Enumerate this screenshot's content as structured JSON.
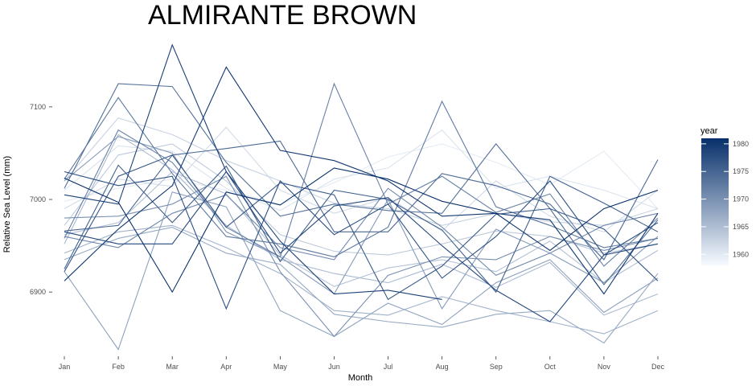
{
  "chart_data": {
    "type": "line",
    "title": "ALMIRANTE BROWN",
    "xlabel": "Month",
    "ylabel": "Relative Sea Level (mm)",
    "categories": [
      "Jan",
      "Feb",
      "Mar",
      "Apr",
      "May",
      "Jun",
      "Jul",
      "Aug",
      "Sep",
      "Oct",
      "Nov",
      "Dec"
    ],
    "ylim": [
      6835,
      7172
    ],
    "yticks": [
      6900,
      7000,
      7100
    ],
    "grid": false,
    "legend": {
      "title": "year",
      "position": "right",
      "range": [
        1958,
        1981
      ],
      "ticks": [
        1960,
        1965,
        1970,
        1975,
        1980
      ],
      "color_low": "#f7fbff",
      "color_high": "#08306b"
    },
    "series": [
      {
        "name": "1958",
        "values": [
          6998,
          7012,
          7022,
          7010,
          6995,
          7018,
          7046,
          7060,
          7040,
          7016,
          7052,
          6990
        ]
      },
      {
        "name": "1959",
        "values": [
          7010,
          7058,
          7052,
          7012,
          6988,
          7022,
          7034,
          7075,
          7012,
          7025,
          7010,
          6990
        ]
      },
      {
        "name": "1960",
        "values": [
          6990,
          7022,
          7014,
          7078,
          7010,
          6985,
          7002,
          6966,
          7020,
          6982,
          6965,
          7010
        ]
      },
      {
        "name": "1961",
        "values": [
          7020,
          7088,
          7070,
          7042,
          7020,
          6996,
          6990,
          6972,
          6985,
          6976,
          6972,
          6990
        ]
      },
      {
        "name": "1962",
        "values": [
          6972,
          7048,
          7060,
          7020,
          6962,
          6944,
          6940,
          6952,
          6966,
          6960,
          6942,
          6952
        ]
      },
      {
        "name": "1963",
        "values": [
          6962,
          6975,
          7030,
          7006,
          6940,
          6906,
          6926,
          6935,
          6922,
          6955,
          6910,
          6945
        ]
      },
      {
        "name": "1964",
        "values": [
          6952,
          7070,
          7032,
          6972,
          6935,
          6920,
          6910,
          6930,
          6905,
          6932,
          6875,
          6898
        ]
      },
      {
        "name": "1965",
        "values": [
          6942,
          6965,
          6972,
          6948,
          6920,
          6880,
          6875,
          6895,
          6880,
          6868,
          6855,
          6880
        ]
      },
      {
        "name": "1966",
        "values": [
          6935,
          6958,
          6970,
          6942,
          6930,
          6876,
          6868,
          6862,
          6876,
          6880,
          6845,
          6920
        ]
      },
      {
        "name": "1967",
        "values": [
          6922,
          6838,
          7008,
          6992,
          6880,
          6852,
          6888,
          6865,
          6910,
          6935,
          6878,
          6915
        ]
      },
      {
        "name": "1968",
        "values": [
          7020,
          7068,
          7050,
          6965,
          6938,
          6898,
          7000,
          6882,
          6968,
          6942,
          6910,
          6960
        ]
      },
      {
        "name": "1969",
        "values": [
          6980,
          6982,
          6995,
          7025,
          6922,
          6852,
          6918,
          6938,
          6935,
          6960,
          6945,
          6958
        ]
      },
      {
        "name": "1970",
        "values": [
          6960,
          6948,
          6985,
          7005,
          6948,
          6935,
          7012,
          6970,
          6918,
          6942,
          6972,
          6985
        ]
      },
      {
        "name": "1971",
        "values": [
          6958,
          7075,
          7040,
          6970,
          6938,
          7125,
          6995,
          7025,
          6986,
          7006,
          6928,
          6980
        ]
      },
      {
        "name": "1972",
        "values": [
          7022,
          7110,
          7028,
          6960,
          6952,
          6938,
          6970,
          7106,
          6992,
          6972,
          6948,
          6958
        ]
      },
      {
        "name": "1973",
        "values": [
          7012,
          7125,
          7122,
          7040,
          6982,
          6995,
          6988,
          6985,
          7060,
          6990,
          6908,
          6978
        ]
      },
      {
        "name": "1974",
        "values": [
          6966,
          6972,
          7048,
          7055,
          7063,
          6965,
          6965,
          7028,
          7015,
          6995,
          6935,
          7043
        ]
      },
      {
        "name": "1975",
        "values": [
          6925,
          7037,
          6975,
          7036,
          6933,
          7010,
          7000,
          6967,
          6900,
          7025,
          6996,
          6965
        ]
      },
      {
        "name": "1976",
        "values": [
          6922,
          7025,
          7048,
          6970,
          7018,
          7005,
          6892,
          6928,
          6984,
          6990,
          6968,
          6912
        ]
      },
      {
        "name": "1977",
        "values": [
          7030,
          7015,
          7025,
          6882,
          7020,
          6962,
          6995,
          6915,
          6960,
          7020,
          6940,
          6975
        ]
      },
      {
        "name": "1978",
        "values": [
          6965,
          6952,
          6952,
          7030,
          6942,
          6993,
          7002,
          6950,
          6902,
          6868,
          6940,
          6952
        ]
      },
      {
        "name": "1979",
        "values": [
          7005,
          6995,
          7167,
          7030,
          6955,
          6898,
          6902,
          6892,
          null,
          null,
          null,
          null
        ]
      },
      {
        "name": "1980",
        "values": [
          6912,
          6968,
          7015,
          7143,
          7053,
          7042,
          7020,
          6982,
          6985,
          6978,
          6898,
          6985
        ]
      },
      {
        "name": "1981",
        "values": [
          7023,
          6997,
          6900,
          7008,
          6994,
          7034,
          7022,
          6998,
          6985,
          6945,
          6990,
          7010
        ]
      }
    ]
  }
}
